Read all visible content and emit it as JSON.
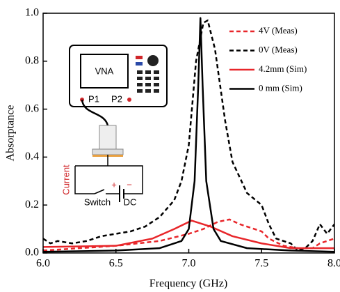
{
  "chart_data": {
    "type": "line",
    "xlabel": "Frequency (GHz)",
    "ylabel": "Absorptance",
    "xlim": [
      6.0,
      8.0
    ],
    "ylim": [
      0.0,
      1.0
    ],
    "xticks": [
      {
        "value": 6.0,
        "label": "6.0"
      },
      {
        "value": 6.5,
        "label": "6.5"
      },
      {
        "value": 7.0,
        "label": "7.0"
      },
      {
        "value": 7.5,
        "label": "7.5"
      },
      {
        "value": 8.0,
        "label": "8.0"
      }
    ],
    "yticks": [
      {
        "value": 0.0,
        "label": "0.0"
      },
      {
        "value": 0.2,
        "label": "0.2"
      },
      {
        "value": 0.4,
        "label": "0.4"
      },
      {
        "value": 0.6,
        "label": "0.6"
      },
      {
        "value": 0.8,
        "label": "0.8"
      },
      {
        "value": 1.0,
        "label": "1.0"
      }
    ],
    "legend": "upper right",
    "series": [
      {
        "name": "4V (Meas)",
        "color": "#e8262a",
        "linestyle": "dashed",
        "x": [
          6.0,
          6.5,
          6.8,
          7.0,
          7.1,
          7.2,
          7.28,
          7.35,
          7.45,
          7.5,
          7.55,
          7.65,
          7.75,
          7.85,
          7.9,
          8.0
        ],
        "values": [
          0.01,
          0.03,
          0.05,
          0.08,
          0.1,
          0.13,
          0.14,
          0.12,
          0.1,
          0.09,
          0.06,
          0.03,
          0.02,
          0.02,
          0.04,
          0.06
        ]
      },
      {
        "name": "0V (Meas)",
        "color": "#000000",
        "linestyle": "dashed",
        "x": [
          6.0,
          6.05,
          6.1,
          6.2,
          6.3,
          6.4,
          6.5,
          6.6,
          6.7,
          6.8,
          6.9,
          6.95,
          7.0,
          7.05,
          7.1,
          7.13,
          7.18,
          7.25,
          7.3,
          7.4,
          7.5,
          7.55,
          7.6,
          7.7,
          7.75,
          7.8,
          7.85,
          7.9,
          7.95,
          8.0
        ],
        "values": [
          0.06,
          0.04,
          0.05,
          0.04,
          0.05,
          0.07,
          0.08,
          0.09,
          0.11,
          0.15,
          0.22,
          0.3,
          0.45,
          0.8,
          0.96,
          0.97,
          0.85,
          0.55,
          0.38,
          0.25,
          0.2,
          0.12,
          0.06,
          0.04,
          0.01,
          0.02,
          0.05,
          0.12,
          0.08,
          0.12
        ]
      },
      {
        "name": "4.2mm (Sim)",
        "color": "#e8262a",
        "linestyle": "solid",
        "x": [
          6.0,
          6.5,
          6.75,
          6.9,
          7.02,
          7.15,
          7.3,
          7.5,
          7.7,
          8.0
        ],
        "values": [
          0.025,
          0.03,
          0.06,
          0.1,
          0.135,
          0.11,
          0.07,
          0.04,
          0.02,
          0.02
        ]
      },
      {
        "name": "0 mm (Sim)",
        "color": "#000000",
        "linestyle": "solid",
        "x": [
          6.0,
          6.5,
          6.8,
          6.95,
          7.0,
          7.04,
          7.065,
          7.08,
          7.095,
          7.12,
          7.17,
          7.22,
          7.4,
          7.7,
          8.0
        ],
        "values": [
          0.005,
          0.01,
          0.02,
          0.05,
          0.1,
          0.3,
          0.7,
          0.98,
          0.7,
          0.3,
          0.1,
          0.05,
          0.02,
          0.01,
          0.005
        ]
      }
    ],
    "inset": {
      "instrument": "VNA",
      "port1": "P1",
      "port2": "P2",
      "current": "Current",
      "switch": "Switch",
      "source": "DC",
      "plus": "+",
      "minus": "−"
    }
  }
}
